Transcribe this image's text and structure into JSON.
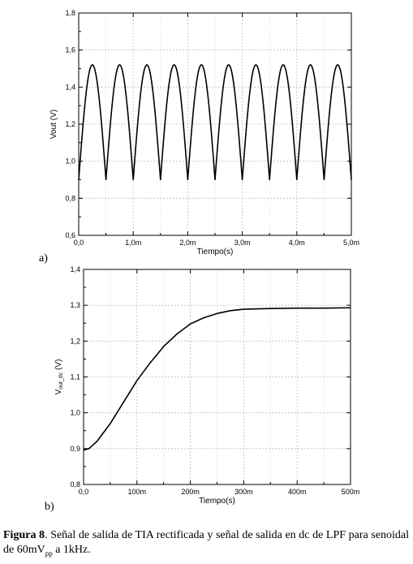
{
  "chart_data": [
    {
      "type": "line",
      "panel_label": "a)",
      "xlabel": "Tiempo(s)",
      "ylabel": "Vout (V)",
      "xlim": [
        0,
        5.0
      ],
      "ylim": [
        0.6,
        1.8
      ],
      "x_unit": "ms",
      "x_ticks": [
        0,
        1,
        2,
        3,
        4,
        5
      ],
      "x_tick_labels": [
        "0,0",
        "1,0m",
        "2,0m",
        "3,0m",
        "4,0m",
        "5,0m"
      ],
      "y_ticks": [
        0.6,
        0.8,
        1.0,
        1.2,
        1.4,
        1.6,
        1.8
      ],
      "y_tick_labels": [
        "0,6",
        "0,8",
        "1,0",
        "1,2",
        "1,4",
        "1,6",
        "1,8"
      ],
      "grid": true,
      "series": [
        {
          "x": [
            0,
            0.25,
            0.5,
            0.75,
            1.0,
            1.25,
            1.5,
            1.75,
            2.0,
            2.25,
            2.5,
            2.75,
            3.0,
            3.25,
            3.5,
            3.75,
            4.0,
            4.25,
            4.5,
            4.75,
            5.0
          ],
          "y": [
            0.9,
            1.52,
            0.9,
            1.52,
            0.9,
            1.52,
            0.9,
            1.52,
            0.9,
            1.52,
            0.9,
            1.52,
            0.9,
            1.52,
            0.9,
            1.52,
            0.9,
            1.52,
            0.9,
            1.52,
            0.9
          ]
        }
      ]
    },
    {
      "type": "line",
      "panel_label": "b)",
      "xlabel": "Tiempo(s)",
      "ylabel": "Vout_dc (V)",
      "ylabel_main": "V",
      "ylabel_sub": "out_dc",
      "ylabel_rest": " (V)",
      "xlim": [
        0,
        500
      ],
      "ylim": [
        0.8,
        1.4
      ],
      "x_unit": "ms",
      "x_ticks": [
        0,
        100,
        200,
        300,
        400,
        500
      ],
      "x_tick_labels": [
        "0,0",
        "100m",
        "200m",
        "300m",
        "400m",
        "500m"
      ],
      "y_ticks": [
        0.8,
        0.9,
        1.0,
        1.1,
        1.2,
        1.3,
        1.4
      ],
      "y_tick_labels": [
        "0,8",
        "0,9",
        "1,0",
        "1,1",
        "1,2",
        "1,3",
        "1,4"
      ],
      "grid": true,
      "series": [
        {
          "x": [
            0,
            10,
            25,
            50,
            75,
            100,
            125,
            150,
            175,
            200,
            225,
            250,
            275,
            300,
            350,
            400,
            450,
            500
          ],
          "y": [
            0.896,
            0.9,
            0.92,
            0.97,
            1.03,
            1.09,
            1.14,
            1.185,
            1.22,
            1.248,
            1.265,
            1.277,
            1.285,
            1.289,
            1.291,
            1.292,
            1.292,
            1.293
          ]
        }
      ]
    }
  ],
  "caption": {
    "label": "Figura 8",
    "text_1": ".  Señal de salida de TIA rectificada  y señal de salida en dc de LPF para senoidal de 60mV",
    "subscript": "pp",
    "text_2": " a 1kHz."
  }
}
